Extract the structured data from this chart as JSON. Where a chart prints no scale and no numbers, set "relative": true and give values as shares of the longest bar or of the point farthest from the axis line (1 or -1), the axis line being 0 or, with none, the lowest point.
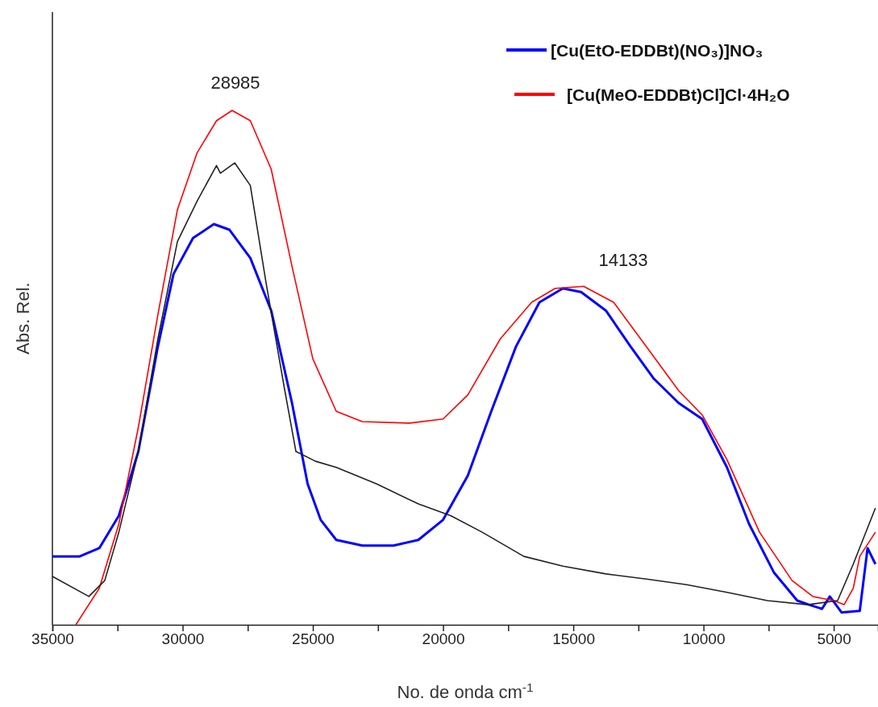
{
  "chart_data": {
    "type": "line",
    "xlabel": "No. de onda cm$^{-1}$",
    "ylabel": "Abs. Rel.",
    "relative": true,
    "legend": "top right",
    "grid": false,
    "marker": "none",
    "line_style": "solid",
    "xlim": [
      35000,
      3300
    ],
    "xticks": [
      35000,
      {
        "value": 32500,
        "label": null
      },
      30000,
      {
        "value": 27500,
        "label": null
      },
      25000,
      {
        "value": 22500,
        "label": null
      },
      20000,
      {
        "value": 17500,
        "label": null
      },
      15000,
      {
        "value": 12500,
        "label": null
      },
      10000,
      {
        "value": 7500,
        "label": null
      },
      5000
    ],
    "annotations": [
      "28985",
      "14133"
    ],
    "series": [
      {
        "name": "[Cu(EtO-EDDBt)(NO₃)]NO₃",
        "color": "#0000ff",
        "x": [
          35000,
          33950,
          33200,
          32450,
          31700,
          30950,
          30350,
          29600,
          28800,
          28200,
          27400,
          26600,
          25800,
          25200,
          24700,
          24100,
          23100,
          21900,
          20950,
          20000,
          19050,
          18150,
          17200,
          16300,
          15400,
          14700,
          13750,
          12800,
          11900,
          10950,
          10050,
          9100,
          8250,
          7300,
          6400,
          5950,
          5450,
          5150,
          4700,
          4000,
          3700,
          3400
        ],
        "values": [
          0.133,
          0.133,
          0.149,
          0.212,
          0.337,
          0.541,
          0.682,
          0.752,
          0.779,
          0.768,
          0.713,
          0.611,
          0.431,
          0.274,
          0.204,
          0.165,
          0.154,
          0.154,
          0.165,
          0.204,
          0.29,
          0.415,
          0.541,
          0.627,
          0.654,
          0.647,
          0.611,
          0.541,
          0.478,
          0.431,
          0.4,
          0.306,
          0.196,
          0.102,
          0.047,
          0.039,
          0.031,
          0.055,
          0.024,
          0.027,
          0.149,
          0.118
        ]
      },
      {
        "name": "[Cu(MeO-EDDBt)Cl]Cl·4H₂O",
        "color": "#ff0000",
        "x": [
          34100,
          33200,
          32450,
          31700,
          30950,
          30200,
          29450,
          28700,
          28100,
          27400,
          26600,
          25800,
          25000,
          24100,
          23100,
          21300,
          20000,
          19050,
          17800,
          16600,
          15700,
          14600,
          13450,
          12200,
          10950,
          10050,
          9100,
          7850,
          6600,
          5800,
          5000,
          4600,
          4250,
          4000,
          3400
        ],
        "values": [
          0,
          0.071,
          0.196,
          0.384,
          0.603,
          0.807,
          0.917,
          0.98,
          1.0,
          0.98,
          0.886,
          0.697,
          0.517,
          0.415,
          0.395,
          0.392,
          0.4,
          0.447,
          0.556,
          0.627,
          0.654,
          0.658,
          0.627,
          0.541,
          0.455,
          0.408,
          0.321,
          0.18,
          0.086,
          0.055,
          0.047,
          0.039,
          0.071,
          0.133,
          0.18
        ]
      },
      {
        "color": "#222222",
        "x": [
          35000,
          33600,
          32990,
          32450,
          31700,
          30950,
          30200,
          29450,
          28700,
          28550,
          28000,
          27400,
          26800,
          26100,
          25650,
          24900,
          24100,
          22550,
          20950,
          19700,
          18500,
          16900,
          15400,
          13750,
          12200,
          10650,
          9100,
          7550,
          6000,
          4850,
          4250,
          3400
        ],
        "values": [
          0.094,
          0.055,
          0.086,
          0.18,
          0.337,
          0.556,
          0.745,
          0.823,
          0.893,
          0.878,
          0.898,
          0.854,
          0.666,
          0.462,
          0.337,
          0.318,
          0.306,
          0.274,
          0.235,
          0.212,
          0.18,
          0.133,
          0.114,
          0.099,
          0.089,
          0.078,
          0.063,
          0.047,
          0.039,
          0.047,
          0.118,
          0.227
        ]
      }
    ]
  }
}
